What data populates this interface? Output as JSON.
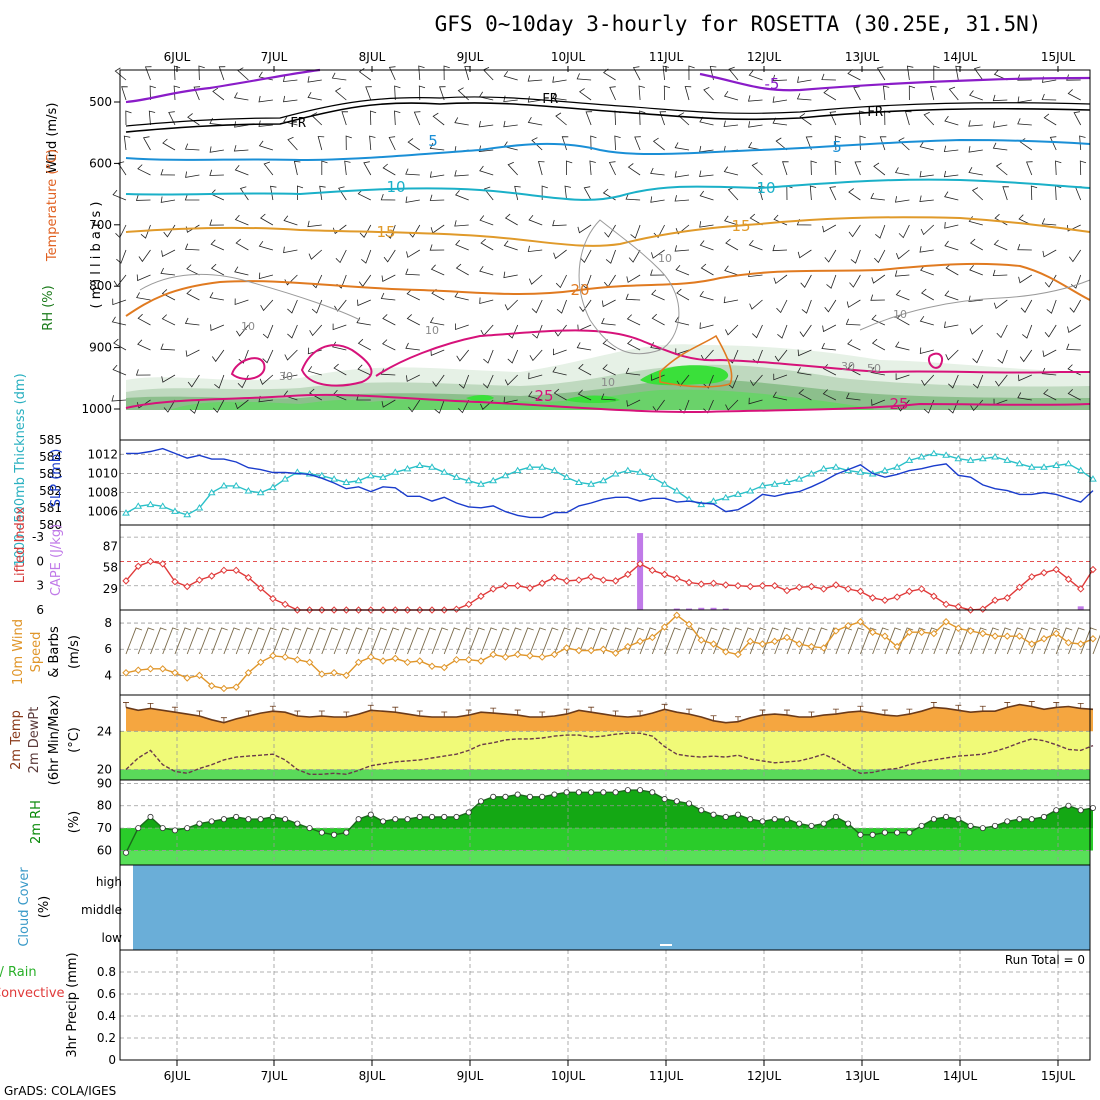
{
  "title": "GFS 0~10day 3-hourly for ROSETTA (30.25E, 31.5N)",
  "credit": "GrADS: COLA/IGES",
  "dates": [
    "6JUL",
    "7JUL",
    "8JUL",
    "9JUL",
    "10JUL",
    "11JUL",
    "12JUL",
    "13JUL",
    "14JUL",
    "15JUL"
  ],
  "colors": {
    "purple": "#8a1cc8",
    "fr": "#000000",
    "t5": "#1a8fd6",
    "t10": "#1ab0c8",
    "t15": "#e09a2a",
    "t20": "#e07a20",
    "t25": "#d6127a",
    "slp": "#1a3ccc",
    "thick": "#2ac0c8",
    "li": "#e03a3a",
    "cape": "#c07ae8",
    "wind10": "#e0962a",
    "temp_fill": "#f5a640",
    "dew_fill": "#f0fa78",
    "low_fill": "#5ada5a",
    "rh_dark": "#14a814",
    "rh_mid": "#2acc2a",
    "rh_light": "#58e058",
    "cloud": "#6aaed8"
  },
  "panels": {
    "upper_air": {
      "ylabel_wind": "Wind (m/s)",
      "ylabel_temp": "Temperature (°C)",
      "ylabel_rh": "RH (%)",
      "ylabel_p": "( m i l l i b a r s )",
      "y_ticks": [
        "500",
        "600",
        "700",
        "800",
        "900",
        "1000"
      ],
      "contour_labels": [
        "-5",
        "FR",
        "FR",
        "FR",
        "5",
        "5",
        "10",
        "10",
        "15",
        "15",
        "20",
        "25",
        "25",
        "10",
        "10",
        "10",
        "30",
        "30",
        "50",
        "10",
        "10"
      ]
    },
    "slp_thickness": {
      "ylabel_thick": "1000~500mb Thickness (dm)",
      "ylabel_slp": "SLP (mb)",
      "left_ticks": [
        "585",
        "584",
        "583",
        "582",
        "581",
        "580"
      ],
      "right_ticks": [
        "1012",
        "1010",
        "1008",
        "1006"
      ]
    },
    "cape_li": {
      "ylabel_li": "Lifted Index",
      "ylabel_cape": "CAPE (J/kg)",
      "left_ticks": [
        "-3",
        "0",
        "3",
        "6"
      ],
      "right_ticks": [
        "87",
        "58",
        "29"
      ]
    },
    "wind10m": {
      "ylabel_a": "10m Wind",
      "ylabel_b": "Speed",
      "ylabel_c": "& Barbs",
      "ylabel_d": "(m/s)",
      "y_ticks": [
        "8",
        "6",
        "4"
      ]
    },
    "temp2m": {
      "ylabel_a": "2m Temp",
      "ylabel_b": "2m DewPt",
      "ylabel_c": "(6hr Min/Max)",
      "ylabel_d": "(°C)",
      "y_ticks": [
        "24",
        "20"
      ]
    },
    "rh2m": {
      "ylabel_a": "2m RH",
      "ylabel_b": "(%)",
      "y_ticks": [
        "90",
        "80",
        "70",
        "60"
      ]
    },
    "cloud": {
      "ylabel_a": "Cloud Cover",
      "ylabel_b": "(%)",
      "levels": [
        "high",
        "middle",
        "low"
      ]
    },
    "precip": {
      "ylabel_a": "Total / Rain",
      "ylabel_b": "Convective",
      "ylabel_c": "3hr Precip (mm)",
      "y_ticks": [
        "0.8",
        "0.6",
        "0.4",
        "0.2",
        "0"
      ],
      "run_total": "Run Total = 0"
    }
  },
  "chart_data": {
    "type": "line",
    "x_unit": "3-hourly steps from 5 JUL 12Z",
    "x_range": [
      0,
      79
    ],
    "series": [
      {
        "name": "SLP (mb)",
        "values": [
          1012.1,
          1012.1,
          1012.3,
          1012.6,
          1012.1,
          1011.6,
          1011.9,
          1011.5,
          1011.5,
          1011.2,
          1010.6,
          1010.4,
          1010.1,
          1010.1,
          1010.0,
          1009.9,
          1009.5,
          1009.0,
          1008.4,
          1008.6,
          1008.1,
          1008.6,
          1008.5,
          1007.6,
          1007.6,
          1007.1,
          1007.5,
          1006.9,
          1006.5,
          1006.4,
          1006.6,
          1006.0,
          1005.6,
          1005.4,
          1005.4,
          1005.9,
          1005.9,
          1006.6,
          1006.9,
          1007.3,
          1007.5,
          1007.5,
          1007.1,
          1007.4,
          1007.4,
          1007.0,
          1007.1,
          1006.9,
          1006.8,
          1006.0,
          1006.2,
          1006.9,
          1007.8,
          1007.6,
          1007.9,
          1008.1,
          1008.6,
          1009.2,
          1009.9,
          1010.4,
          1010.9,
          1010.0,
          1009.6,
          1009.9,
          1010.3,
          1010.5,
          1010.8,
          1011.0,
          1009.8,
          1009.6,
          1008.8,
          1008.4,
          1008.2,
          1007.8,
          1007.8,
          1008.0,
          1007.8,
          1007.4,
          1007.0,
          1008.2
        ]
      },
      {
        "name": "1000~500mb Thickness (dm)",
        "values": [
          580.7,
          581.1,
          581.2,
          581.1,
          580.8,
          580.6,
          581.0,
          581.9,
          582.3,
          582.3,
          582.0,
          581.9,
          582.2,
          582.7,
          583.1,
          583.0,
          582.9,
          582.7,
          582.5,
          582.6,
          582.9,
          582.8,
          583.1,
          583.3,
          583.5,
          583.4,
          583.1,
          582.8,
          582.6,
          582.4,
          582.6,
          582.9,
          583.2,
          583.4,
          583.4,
          583.2,
          582.8,
          582.5,
          582.4,
          582.6,
          583.0,
          583.2,
          583.1,
          582.8,
          582.4,
          582.0,
          581.5,
          581.2,
          581.4,
          581.6,
          581.8,
          582.0,
          582.3,
          582.4,
          582.5,
          582.7,
          583.0,
          583.3,
          583.4,
          583.2,
          583.1,
          583.0,
          583.2,
          583.4,
          583.8,
          584.0,
          584.2,
          584.1,
          583.9,
          583.8,
          583.9,
          584.0,
          583.8,
          583.6,
          583.4,
          583.4,
          583.5,
          583.6,
          583.2,
          582.7
        ]
      },
      {
        "name": "Lifted Index",
        "values": [
          2.4,
          0.6,
          0.0,
          0.3,
          2.5,
          3.1,
          2.3,
          1.8,
          1.1,
          1.1,
          2.0,
          3.3,
          4.6,
          5.3,
          6.5,
          6.0,
          6.8,
          7.4,
          7.6,
          7.2,
          6.8,
          6.7,
          7.0,
          7.0,
          6.8,
          6.6,
          6.2,
          5.9,
          5.3,
          4.3,
          3.4,
          3.0,
          3.0,
          3.3,
          2.7,
          2.0,
          2.4,
          2.3,
          1.9,
          2.3,
          2.4,
          1.6,
          0.3,
          1.1,
          1.6,
          2.1,
          2.6,
          2.8,
          2.7,
          2.9,
          3.0,
          3.1,
          3.0,
          3.0,
          3.6,
          3.2,
          3.1,
          3.4,
          2.9,
          3.4,
          3.7,
          4.5,
          4.8,
          4.4,
          3.7,
          3.4,
          4.3,
          5.3,
          5.6,
          6.0,
          5.9,
          4.8,
          4.5,
          3.2,
          1.9,
          1.4,
          1.0,
          2.2,
          3.4,
          1.0
        ]
      },
      {
        "name": "CAPE (J/kg)",
        "values": [
          0,
          0,
          0,
          0,
          0,
          0,
          0,
          0,
          0,
          0,
          0,
          0,
          0,
          0,
          0,
          0,
          0,
          0,
          0,
          0,
          0,
          0,
          0,
          0,
          0,
          0,
          0,
          0,
          0,
          0,
          0,
          0,
          0,
          0,
          0,
          0,
          0,
          0,
          0,
          0,
          0,
          0,
          105,
          0,
          0,
          2,
          2,
          3,
          3,
          2,
          0,
          0,
          0,
          0,
          0,
          0,
          0,
          0,
          0,
          0,
          0,
          0,
          0,
          0,
          0,
          0,
          0,
          0,
          0,
          0,
          0,
          0,
          0,
          0,
          0,
          0,
          0,
          0,
          5,
          0
        ]
      },
      {
        "name": "10m Wind Speed (m/s)",
        "values": [
          4.2,
          4.4,
          4.5,
          4.5,
          4.2,
          3.8,
          4.0,
          3.2,
          3.0,
          3.1,
          4.2,
          5.0,
          5.5,
          5.4,
          5.2,
          5.0,
          4.1,
          4.2,
          4.0,
          5.0,
          5.4,
          5.1,
          5.3,
          5.0,
          5.1,
          4.7,
          4.6,
          5.2,
          5.2,
          5.1,
          5.6,
          5.4,
          5.6,
          5.5,
          5.4,
          5.6,
          6.1,
          5.9,
          5.9,
          6.0,
          5.7,
          6.2,
          6.6,
          6.9,
          7.7,
          8.6,
          7.9,
          6.7,
          6.4,
          5.8,
          5.6,
          6.6,
          6.4,
          6.6,
          6.9,
          6.4,
          6.2,
          6.1,
          7.4,
          7.8,
          8.1,
          7.3,
          7.0,
          6.2,
          7.3,
          7.3,
          7.2,
          8.1,
          7.6,
          7.4,
          7.2,
          7.0,
          7.0,
          7.0,
          6.4,
          6.8,
          7.2,
          6.5,
          6.4,
          6.8
        ]
      },
      {
        "name": "2m Temperature (°C)",
        "values": [
          26.5,
          26.2,
          26.4,
          26.2,
          26.0,
          25.8,
          25.6,
          25.2,
          24.9,
          25.3,
          25.6,
          25.9,
          26.1,
          26.0,
          25.6,
          25.5,
          25.6,
          25.5,
          25.5,
          25.8,
          26.2,
          26.1,
          26.0,
          25.8,
          25.6,
          25.5,
          25.5,
          25.5,
          25.7,
          26.0,
          25.9,
          25.8,
          25.7,
          25.5,
          25.5,
          25.6,
          25.8,
          26.2,
          26.0,
          25.8,
          25.6,
          25.5,
          25.6,
          25.9,
          26.3,
          26.0,
          25.8,
          25.5,
          25.1,
          24.9,
          25.0,
          25.4,
          25.7,
          25.8,
          25.7,
          25.5,
          25.5,
          25.7,
          25.8,
          26.0,
          26.1,
          25.9,
          25.7,
          25.6,
          25.8,
          26.1,
          26.5,
          26.4,
          26.2,
          26.0,
          26.1,
          26.1,
          26.5,
          26.8,
          26.6,
          26.3,
          26.5,
          26.6,
          26.4,
          26.3
        ]
      },
      {
        "name": "2m Dew Point (°C)",
        "values": [
          20.0,
          21.2,
          22.0,
          20.5,
          19.8,
          19.6,
          20.1,
          20.5,
          21.0,
          21.3,
          21.4,
          21.5,
          21.6,
          21.0,
          20.0,
          19.5,
          19.5,
          19.6,
          19.5,
          19.9,
          20.4,
          20.6,
          20.8,
          20.9,
          21.0,
          21.2,
          21.4,
          21.6,
          22.0,
          22.6,
          22.8,
          23.1,
          23.2,
          23.2,
          23.3,
          23.5,
          23.6,
          23.6,
          23.4,
          23.5,
          23.7,
          23.8,
          23.8,
          23.5,
          22.4,
          21.6,
          21.4,
          21.3,
          21.4,
          21.3,
          21.5,
          21.1,
          20.9,
          20.7,
          20.8,
          20.9,
          21.2,
          21.6,
          21.0,
          20.2,
          19.6,
          19.7,
          20.0,
          20.1,
          20.5,
          20.8,
          21.0,
          21.2,
          21.4,
          21.5,
          21.6,
          21.9,
          22.3,
          22.8,
          23.2,
          23.0,
          22.6,
          22.1,
          22.0,
          22.5
        ]
      },
      {
        "name": "2m RH (%)",
        "values": [
          59,
          70,
          75,
          70,
          69,
          70,
          72,
          73,
          74,
          75,
          74,
          74,
          75,
          74,
          72,
          70,
          68,
          67,
          68,
          74,
          76,
          73,
          74,
          74,
          75,
          75,
          75,
          75,
          77,
          82,
          84,
          84,
          85,
          84,
          84,
          85,
          86,
          86,
          86,
          86,
          86,
          87,
          87,
          86,
          83,
          82,
          81,
          78,
          76,
          75,
          76,
          74,
          73,
          74,
          74,
          72,
          71,
          72,
          75,
          72,
          67,
          67,
          68,
          68,
          68,
          71,
          74,
          75,
          74,
          71,
          70,
          71,
          73,
          74,
          74,
          75,
          78,
          80,
          78,
          79
        ]
      }
    ],
    "ylim": {
      "thickness": [
        580,
        585
      ],
      "slp": [
        1004.6,
        1013.5
      ],
      "lifted_index": [
        -4.5,
        6
      ],
      "cape": [
        0,
        116
      ],
      "wind": [
        2.5,
        9.0
      ],
      "temp": [
        18.9,
        27.8
      ],
      "rh": [
        53.5,
        91.5
      ]
    },
    "cloud_cover": {
      "high": 0,
      "middle": 0,
      "low": 0
    },
    "precip_total_mm": 0,
    "precip_ylim": [
      0,
      1
    ]
  }
}
